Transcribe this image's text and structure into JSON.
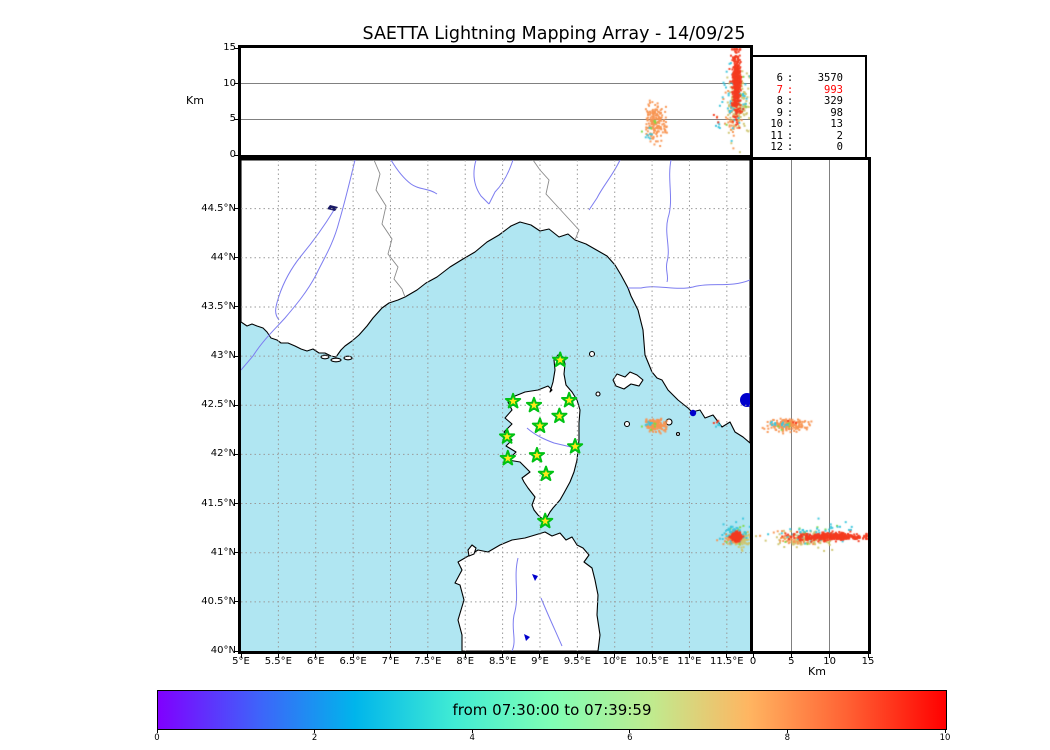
{
  "title": "SAETTA Lightning Mapping Array - 14/09/25",
  "axis_labels": {
    "altitude_left": "Km",
    "altitude_right": "Km"
  },
  "stats_panel": {
    "rows": [
      {
        "stations": "6",
        "count": "3570",
        "highlight": false
      },
      {
        "stations": "7",
        "count": "993",
        "highlight": true
      },
      {
        "stations": "8",
        "count": "329",
        "highlight": false
      },
      {
        "stations": "9",
        "count": "98",
        "highlight": false
      },
      {
        "stations": "10",
        "count": "13",
        "highlight": false
      },
      {
        "stations": "11",
        "count": "2",
        "highlight": false
      },
      {
        "stations": "12",
        "count": "0",
        "highlight": false
      }
    ]
  },
  "colorbar": {
    "label": "from 07:30:00 to 07:39:59",
    "tick_labels": [
      "0",
      "2",
      "4",
      "6",
      "8",
      "10"
    ],
    "tick_values": [
      0,
      2,
      4,
      6,
      8,
      10
    ],
    "range": [
      0,
      10
    ],
    "gradient": [
      "#8000ff",
      "#4061fa",
      "#00b5eb",
      "#40ebd4",
      "#80ffb5",
      "#bfeb8f",
      "#ffb561",
      "#ff6133",
      "#ff0000"
    ]
  },
  "colors": {
    "sea": "#b0e6f2",
    "land": "#ffffff",
    "coast": "#000000",
    "river": "#7d7df0",
    "border_line": "#8a8a8a",
    "grid": "#9a9a9a",
    "lake": "#0000cc",
    "star_fill": "#ffe818",
    "star_edge": "#00c214",
    "stats_highlight": "#ff0000",
    "point_red": "#f43b20",
    "point_orange": "#f89552",
    "point_khaki": "#cfc571",
    "point_cyan": "#3cc6dd",
    "point_green": "#7fd944"
  },
  "chart_data": {
    "type": "scatter",
    "title": "SAETTA Lightning Mapping Array - 14/09/25",
    "time_window": {
      "start": "07:30:00",
      "end": "07:39:59",
      "colorbar_minutes": [
        0,
        10
      ]
    },
    "panels": {
      "top": {
        "x": "longitude",
        "y": "altitude_km",
        "ylabel": "Km",
        "y_ticks": [
          0,
          5,
          10,
          15
        ],
        "y_tick_labels": [
          "0",
          "5",
          "10",
          "15"
        ],
        "ylim": [
          0,
          15
        ],
        "grid_y": [
          5,
          10
        ]
      },
      "map": {
        "x": "longitude",
        "y": "latitude",
        "lon_lim": [
          5,
          11.81
        ],
        "lat_lim": [
          40,
          44.995
        ],
        "lon_ticks": [
          5,
          5.5,
          6,
          6.5,
          7,
          7.5,
          8,
          8.5,
          9,
          9.5,
          10,
          10.5,
          11,
          11.5
        ],
        "lon_tick_labels": [
          "5°E",
          "5.5°E",
          "6°E",
          "6.5°E",
          "7°E",
          "7.5°E",
          "8°E",
          "8.5°E",
          "9°E",
          "9.5°E",
          "10°E",
          "10.5°E",
          "11°E",
          "11.5°E"
        ],
        "lat_ticks": [
          40,
          40.5,
          41,
          41.5,
          42,
          42.5,
          43,
          43.5,
          44,
          44.5
        ],
        "lat_tick_labels": [
          "40°N",
          "40.5°N",
          "41°N",
          "41.5°N",
          "42°N",
          "42.5°N",
          "43°N",
          "43.5°N",
          "44°N",
          "44.5°N"
        ],
        "grid_lon": [
          5.5,
          6,
          6.5,
          7,
          7.5,
          8,
          8.5,
          9,
          9.5,
          10,
          10.5,
          11,
          11.5
        ],
        "grid_lat": [
          40.5,
          41,
          41.5,
          42,
          42.5,
          43,
          43.5,
          44,
          44.5
        ]
      },
      "right": {
        "x": "altitude_km",
        "y": "latitude",
        "xlabel": "Km",
        "x_ticks": [
          0,
          5,
          10,
          15
        ],
        "x_tick_labels": [
          "0",
          "5",
          "10",
          "15"
        ],
        "xlim": [
          0,
          15
        ],
        "grid_x": [
          5,
          10
        ]
      }
    },
    "sources_per_station_count": [
      {
        "stations": 6,
        "sources": 3570
      },
      {
        "stations": 7,
        "sources": 993
      },
      {
        "stations": 8,
        "sources": 329
      },
      {
        "stations": 9,
        "sources": 98
      },
      {
        "stations": 10,
        "sources": 13
      },
      {
        "stations": 11,
        "sources": 2
      },
      {
        "stations": 12,
        "sources": 0
      }
    ],
    "lma_stations_lonlat": [
      [
        9.27,
        42.96
      ],
      [
        8.64,
        42.54
      ],
      [
        8.92,
        42.5
      ],
      [
        9.39,
        42.55
      ],
      [
        9.26,
        42.39
      ],
      [
        9.0,
        42.29
      ],
      [
        8.56,
        42.18
      ],
      [
        9.47,
        42.08
      ],
      [
        8.57,
        41.96
      ],
      [
        8.96,
        41.99
      ],
      [
        9.08,
        41.8
      ],
      [
        9.07,
        41.32
      ]
    ],
    "clusters": [
      {
        "name": "storm-A-orange",
        "color": "point_orange",
        "count": 170,
        "lon_mean": 10.55,
        "lon_sd": 0.07,
        "lat_mean": 42.3,
        "lat_sd": 0.032,
        "alt_mean_km": 4.6,
        "alt_sd_km": 1.4
      },
      {
        "name": "storm-A-cyan",
        "color": "point_cyan",
        "count": 8,
        "lon_mean": 10.46,
        "lon_sd": 0.03,
        "lat_mean": 42.31,
        "lat_sd": 0.015,
        "alt_mean_km": 2.8,
        "alt_sd_km": 0.7
      },
      {
        "name": "storm-A-green",
        "color": "point_green",
        "count": 5,
        "lon_mean": 10.52,
        "lon_sd": 0.05,
        "lat_mean": 42.29,
        "lat_sd": 0.02,
        "alt_mean_km": 4.0,
        "alt_sd_km": 1.0
      },
      {
        "name": "storm-B-khaki",
        "color": "point_khaki",
        "count": 150,
        "lon_mean": 11.66,
        "lon_sd": 0.075,
        "lat_mean": 41.14,
        "lat_sd": 0.04,
        "alt_mean_km": 7.0,
        "alt_sd_km": 1.9
      },
      {
        "name": "storm-B-orange",
        "color": "point_orange",
        "count": 45,
        "lon_mean": 11.58,
        "lon_sd": 0.06,
        "lat_mean": 41.15,
        "lat_sd": 0.03,
        "alt_mean_km": 5.5,
        "alt_sd_km": 1.8
      },
      {
        "name": "storm-B-green",
        "color": "point_green",
        "count": 10,
        "lon_mean": 11.63,
        "lon_sd": 0.09,
        "lat_mean": 41.17,
        "lat_sd": 0.05,
        "alt_mean_km": 8.0,
        "alt_sd_km": 2.5
      },
      {
        "name": "storm-B-cyan",
        "color": "point_cyan",
        "count": 55,
        "lon_mean": 11.62,
        "lon_sd": 0.1,
        "lat_mean": 41.19,
        "lat_sd": 0.05,
        "alt_mean_km": 7.5,
        "alt_sd_km": 2.6
      },
      {
        "name": "specks-C-cyan",
        "color": "point_cyan",
        "count": 5,
        "lon_mean": 11.38,
        "lon_sd": 0.04,
        "lat_mean": 42.3,
        "lat_sd": 0.015,
        "alt_mean_km": 4.0,
        "alt_sd_km": 0.8
      },
      {
        "name": "specks-C-red",
        "color": "point_red",
        "count": 3,
        "lon_mean": 11.35,
        "lon_sd": 0.02,
        "lat_mean": 42.32,
        "lat_sd": 0.01,
        "alt_mean_km": 5.0,
        "alt_sd_km": 0.8
      },
      {
        "name": "storm-B-red-core",
        "color": "point_red",
        "count": 430,
        "lon_mean": 11.63,
        "lon_sd": 0.027,
        "lat_mean": 41.16,
        "lat_sd": 0.018,
        "alt_mean_km": 9.8,
        "alt_sd_km": 2.3
      }
    ],
    "altitude_clamp_km": [
      0.4,
      14.8
    ]
  }
}
